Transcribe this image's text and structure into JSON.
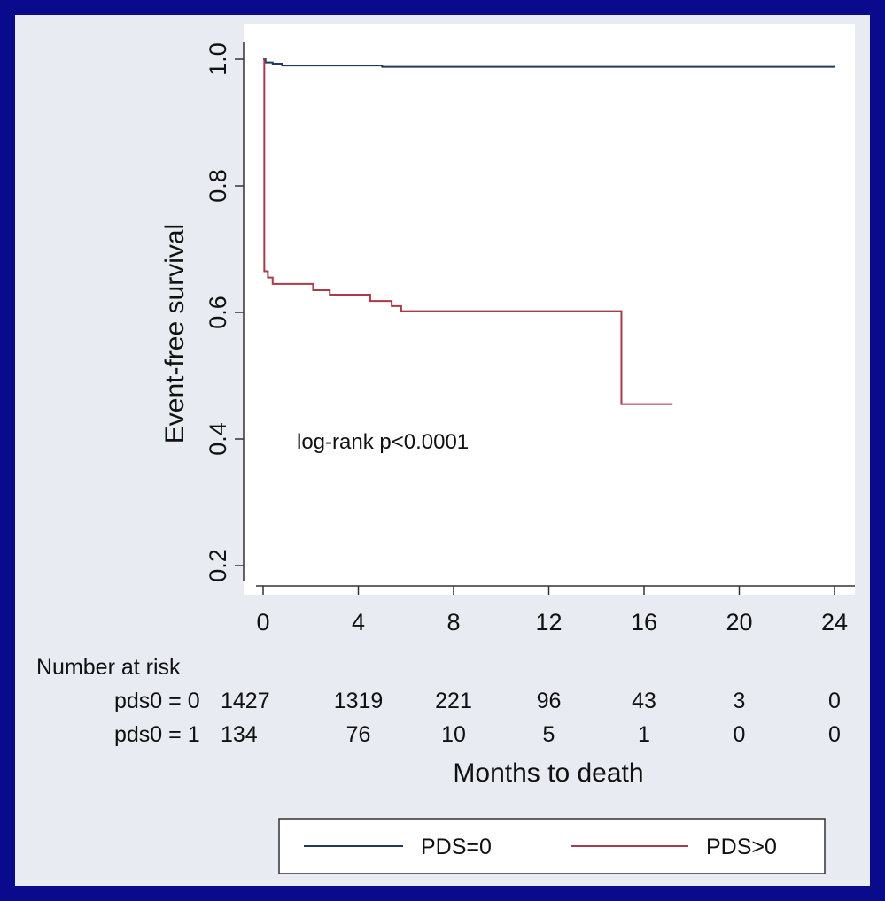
{
  "chart_data": {
    "type": "line",
    "subtype": "kaplan-meier step",
    "title": "",
    "xlabel": "Months to death",
    "ylabel": "Event-free survival",
    "xlim": [
      0,
      24
    ],
    "ylim": [
      0.2,
      1.0
    ],
    "x_ticks": [
      "0",
      "4",
      "8",
      "12",
      "16",
      "20",
      "24"
    ],
    "y_ticks": [
      "0.2",
      "0.4",
      "0.6",
      "0.8",
      "1.0"
    ],
    "grid": false,
    "annotation": "log-rank p<0.0001",
    "series": [
      {
        "name": "PDS=0",
        "color": "#1f3a5f",
        "points": [
          [
            0,
            1.0
          ],
          [
            0.1,
            0.995
          ],
          [
            0.4,
            0.993
          ],
          [
            0.8,
            0.99
          ],
          [
            4.8,
            0.99
          ],
          [
            5,
            0.988
          ],
          [
            24,
            0.988
          ]
        ]
      },
      {
        "name": "PDS>0",
        "color": "#a83a4a",
        "points": [
          [
            0,
            1.0
          ],
          [
            0.05,
            0.665
          ],
          [
            0.2,
            0.655
          ],
          [
            0.4,
            0.645
          ],
          [
            2,
            0.645
          ],
          [
            2.1,
            0.635
          ],
          [
            2.7,
            0.635
          ],
          [
            2.8,
            0.628
          ],
          [
            4.4,
            0.628
          ],
          [
            4.5,
            0.618
          ],
          [
            5.3,
            0.618
          ],
          [
            5.4,
            0.61
          ],
          [
            5.7,
            0.61
          ],
          [
            5.8,
            0.602
          ],
          [
            15,
            0.602
          ],
          [
            15.05,
            0.455
          ],
          [
            17.2,
            0.455
          ]
        ]
      }
    ],
    "risk_table": {
      "title": "Number at risk",
      "rows": [
        {
          "label": "pds0 = 0",
          "values": [
            "1427",
            "1319",
            "221",
            "96",
            "43",
            "3",
            "0"
          ]
        },
        {
          "label": "pds0 = 1",
          "values": [
            "134",
            "76",
            "10",
            "5",
            "1",
            "0",
            "0"
          ]
        }
      ]
    },
    "legend": {
      "position": "bottom",
      "entries": [
        "PDS=0",
        "PDS>0"
      ]
    }
  }
}
